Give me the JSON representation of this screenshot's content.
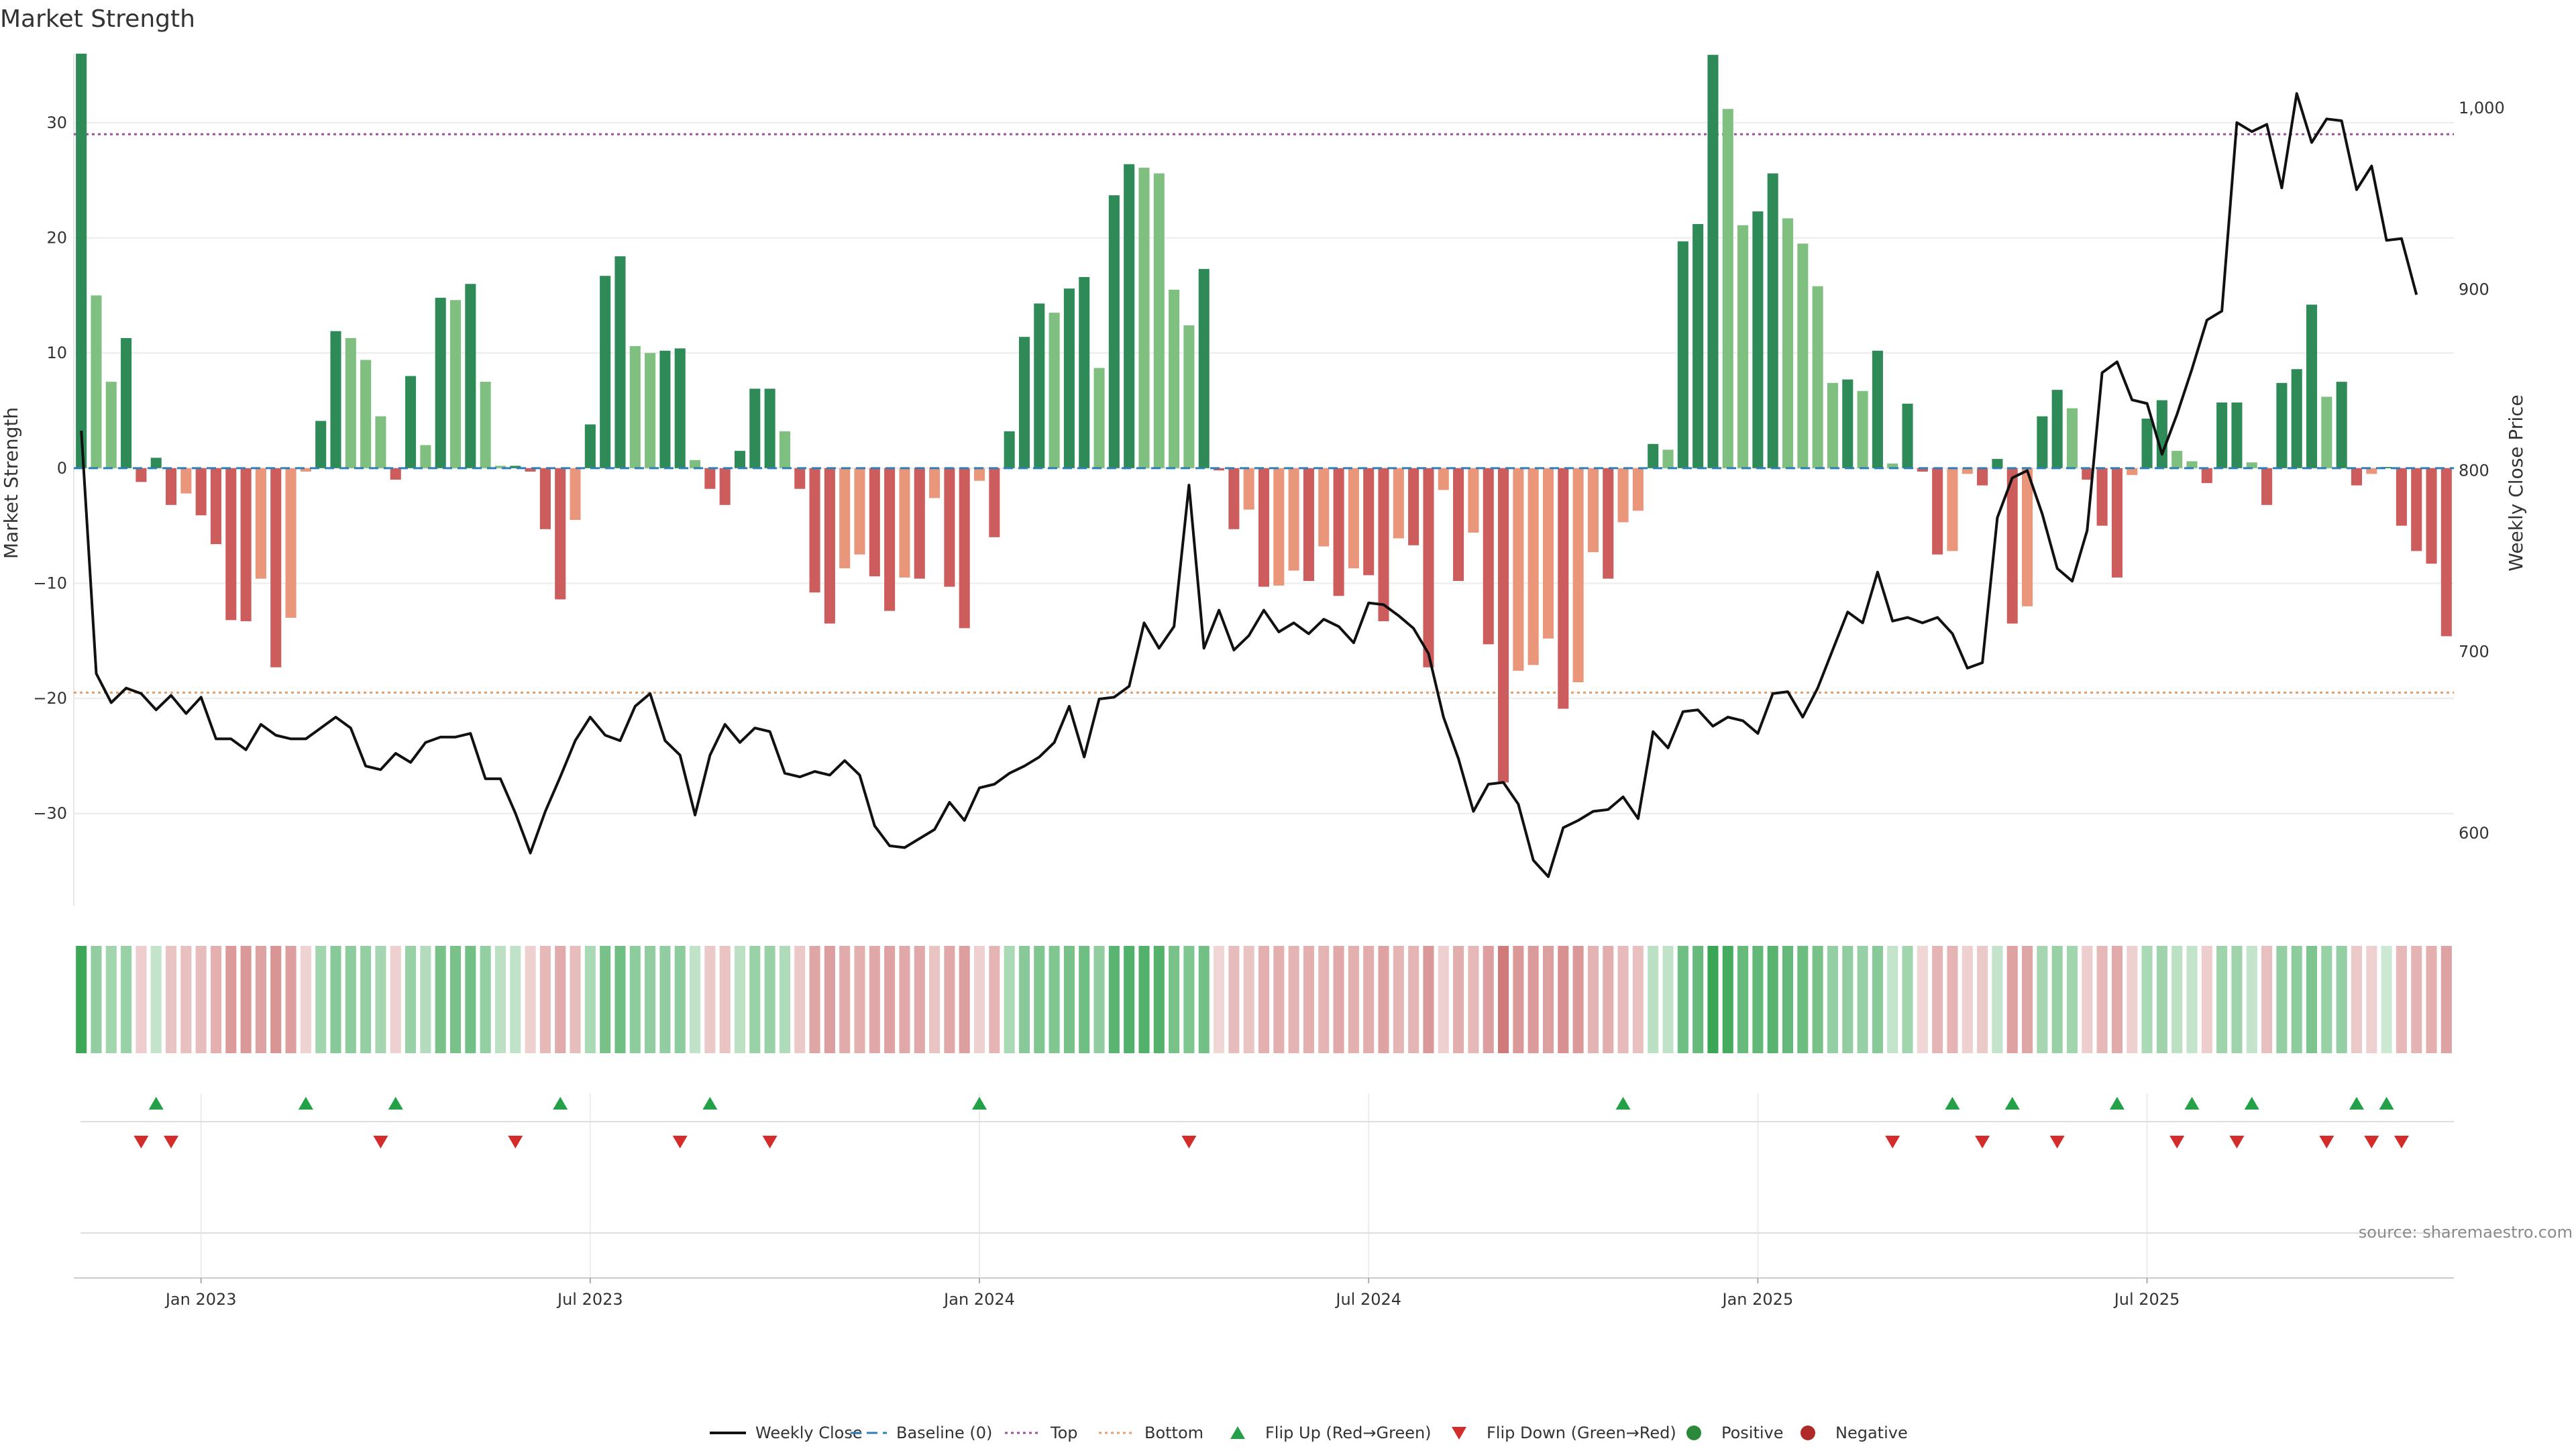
{
  "chart_data": {
    "type": "bar",
    "title": "Market Strength",
    "ylabel": "Market Strength",
    "y2label": "Weekly Close Price",
    "ylim": [
      -38,
      36
    ],
    "y2lim": [
      560,
      1030
    ],
    "yticks": [
      30,
      20,
      10,
      0,
      -10,
      -20,
      -30
    ],
    "y2ticks": [
      {
        "value": 1000,
        "label": "1,000"
      },
      {
        "value": 900,
        "label": "900"
      },
      {
        "value": 800,
        "label": "800"
      },
      {
        "value": 700,
        "label": "700"
      },
      {
        "value": 600,
        "label": "600"
      }
    ],
    "xticks": [
      {
        "week": 8.5,
        "label": "Jan 2023"
      },
      {
        "week": 34.5,
        "label": "Jul 2023"
      },
      {
        "week": 60.5,
        "label": "Jan 2024"
      },
      {
        "week": 86.5,
        "label": "Jul 2024"
      },
      {
        "week": 112.5,
        "label": "Jan 2025"
      },
      {
        "week": 138.5,
        "label": "Jul 2025"
      }
    ],
    "top_level": 29,
    "bottom_level": -19.5,
    "grid": true,
    "strength": [
      36,
      15,
      7.5,
      11.3,
      -1.2,
      0.9,
      -3.2,
      -2.2,
      -4.1,
      -6.6,
      -13.2,
      -13.3,
      -9.6,
      -17.3,
      -13,
      -0.3,
      4.1,
      11.9,
      11.3,
      9.4,
      4.5,
      -1,
      8,
      2,
      14.8,
      14.6,
      16,
      7.5,
      0.2,
      0.2,
      -0.3,
      -5.3,
      -11.4,
      -4.5,
      3.8,
      16.7,
      18.4,
      10.6,
      10,
      10.2,
      10.4,
      0.7,
      -1.8,
      -3.2,
      1.5,
      6.9,
      6.9,
      3.2,
      -1.8,
      -10.8,
      -13.5,
      -8.7,
      -7.5,
      -9.4,
      -12.4,
      -9.5,
      -9.6,
      -2.6,
      -10.3,
      -13.9,
      -1.1,
      -6,
      3.2,
      11.4,
      14.3,
      13.5,
      15.6,
      16.6,
      8.7,
      23.7,
      26.4,
      26.1,
      25.6,
      15.5,
      12.4,
      17.3,
      -0.2,
      -5.3,
      -3.6,
      -10.3,
      -10.2,
      -8.9,
      -9.8,
      -6.8,
      -11.1,
      -8.7,
      -9.3,
      -13.3,
      -6.1,
      -6.7,
      -17.3,
      -1.9,
      -9.8,
      -5.6,
      -15.3,
      -27.3,
      -17.6,
      -17.1,
      -14.8,
      -20.9,
      -18.6,
      -7.3,
      -9.6,
      -4.7,
      -3.7,
      2.1,
      1.6,
      19.7,
      21.2,
      35.9,
      31.2,
      21.1,
      22.3,
      25.6,
      21.7,
      19.5,
      15.8,
      7.4,
      7.7,
      6.7,
      10.2,
      0.4,
      5.6,
      -0.3,
      -7.5,
      -7.2,
      -0.5,
      -1.5,
      0.8,
      -13.5,
      -12,
      4.5,
      6.8,
      5.2,
      -1,
      -5,
      -9.5,
      -0.6,
      4.3,
      5.9,
      1.5,
      0.6,
      -1.3,
      5.7,
      5.7,
      0.5,
      -3.2,
      7.4,
      8.6,
      14.2,
      6.2,
      7.5,
      -1.5,
      -0.5,
      0.1,
      -5,
      -7.2,
      -8.3,
      -14.6
    ],
    "weekly_close": [
      822,
      688,
      672,
      680,
      677,
      668,
      676,
      666,
      675,
      652,
      652,
      646,
      660,
      654,
      652,
      652,
      658,
      664,
      658,
      637,
      635,
      644,
      639,
      650,
      653,
      653,
      655,
      630,
      630,
      611,
      589,
      612,
      631,
      651,
      664,
      654,
      651,
      670,
      677,
      651,
      643,
      610,
      643,
      660,
      650,
      658,
      656,
      633,
      631,
      634,
      632,
      640,
      632,
      604,
      593,
      592,
      597,
      602,
      617,
      607,
      625,
      627,
      633,
      637,
      642,
      650,
      670,
      642,
      674,
      675,
      681,
      716,
      702,
      714,
      792,
      702,
      723,
      701,
      709,
      723,
      711,
      716,
      710,
      718,
      714,
      705,
      727,
      726,
      720,
      713,
      699,
      664,
      641,
      612,
      627,
      628,
      616,
      585,
      576,
      603,
      607,
      612,
      613,
      620,
      608,
      656,
      647,
      667,
      668,
      659,
      664,
      662,
      655,
      677,
      678,
      664,
      680,
      701,
      722,
      716,
      744,
      717,
      719,
      716,
      719,
      710,
      691,
      694,
      774,
      796,
      800,
      776,
      746,
      739,
      767,
      854,
      860,
      839,
      837,
      809,
      831,
      856,
      883,
      888,
      992,
      987,
      991,
      956,
      1008,
      981,
      994,
      993,
      955,
      968,
      927,
      928,
      897
    ],
    "color_strip": [
      0.9,
      0.4,
      0.3,
      0.35,
      -0.12,
      0.1,
      -0.2,
      -0.22,
      -0.25,
      -0.35,
      -0.5,
      -0.52,
      -0.45,
      -0.55,
      -0.48,
      -0.08,
      0.3,
      0.45,
      0.42,
      0.38,
      0.28,
      -0.1,
      0.35,
      0.2,
      0.55,
      0.55,
      0.58,
      0.38,
      0.15,
      0.12,
      -0.1,
      -0.28,
      -0.38,
      -0.25,
      0.25,
      0.55,
      0.6,
      0.42,
      0.4,
      0.4,
      0.42,
      0.12,
      -0.15,
      -0.2,
      0.15,
      0.35,
      0.35,
      0.22,
      -0.15,
      -0.42,
      -0.48,
      -0.38,
      -0.35,
      -0.4,
      -0.45,
      -0.4,
      -0.4,
      -0.2,
      -0.4,
      -0.48,
      -0.1,
      -0.3,
      0.25,
      0.45,
      0.5,
      0.5,
      0.55,
      0.6,
      0.4,
      0.72,
      0.78,
      0.78,
      0.76,
      0.55,
      0.5,
      0.58,
      -0.05,
      -0.25,
      -0.2,
      -0.35,
      -0.35,
      -0.32,
      -0.35,
      -0.3,
      -0.4,
      -0.35,
      -0.36,
      -0.45,
      -0.3,
      -0.3,
      -0.52,
      -0.1,
      -0.36,
      -0.28,
      -0.48,
      -0.75,
      -0.52,
      -0.5,
      -0.46,
      -0.58,
      -0.52,
      -0.32,
      -0.36,
      -0.26,
      -0.22,
      0.15,
      0.12,
      0.6,
      0.65,
      0.95,
      0.85,
      0.65,
      0.68,
      0.74,
      0.66,
      0.62,
      0.55,
      0.38,
      0.4,
      0.36,
      0.45,
      0.1,
      0.3,
      -0.05,
      -0.3,
      -0.3,
      -0.1,
      -0.15,
      0.1,
      -0.45,
      -0.42,
      0.28,
      0.35,
      0.3,
      -0.12,
      -0.28,
      -0.38,
      -0.1,
      0.25,
      0.32,
      0.15,
      0.1,
      -0.12,
      0.32,
      0.32,
      0.1,
      -0.22,
      0.38,
      0.42,
      0.52,
      0.35,
      0.38,
      -0.15,
      -0.1,
      0.05,
      -0.28,
      -0.32,
      -0.35,
      -0.45
    ],
    "flip_up_weeks": [
      5,
      15,
      21,
      32,
      42,
      60,
      103,
      125,
      129,
      136,
      141,
      145,
      152,
      154
    ],
    "flip_down_weeks": [
      4,
      6,
      20,
      29,
      40,
      46,
      74,
      121,
      127,
      132,
      140,
      144,
      150,
      153,
      155
    ],
    "legend": [
      {
        "label": "Weekly Close",
        "kind": "line",
        "color": "#111111"
      },
      {
        "label": "Baseline (0)",
        "kind": "dash",
        "color": "#2f7fb5"
      },
      {
        "label": "Top",
        "kind": "dot",
        "color": "#9a4d9a"
      },
      {
        "label": "Bottom",
        "kind": "dot",
        "color": "#e0a070"
      },
      {
        "label": "Flip Up (Red→Green)",
        "kind": "up",
        "color": "#24a148"
      },
      {
        "label": "Flip Down (Green→Red)",
        "kind": "down",
        "color": "#d42b2b"
      },
      {
        "label": "Positive",
        "kind": "dot-circle",
        "color": "#2a8a3a"
      },
      {
        "label": "Negative",
        "kind": "dot-circle",
        "color": "#b02a2a"
      }
    ],
    "source": "source: sharemaestro.com",
    "colors": {
      "pos_strong": "#2e8b57",
      "pos_light": "#7fbf7f",
      "neg_strong": "#cd5c5c",
      "neg_light": "#e9967a",
      "line": "#111111"
    }
  }
}
